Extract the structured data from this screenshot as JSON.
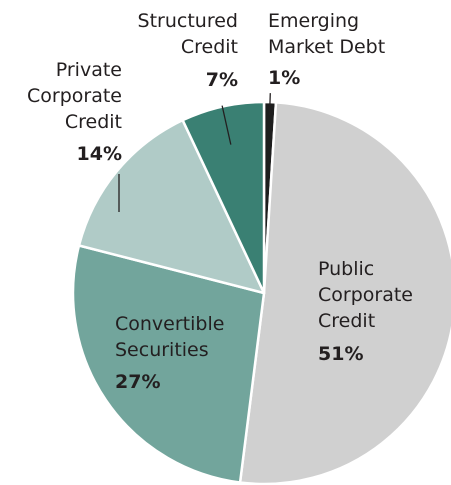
{
  "chart_data": {
    "type": "pie",
    "title": "",
    "slices": [
      {
        "name": "Public Corporate Credit",
        "label_lines": [
          "Public",
          "Corporate",
          "Credit"
        ],
        "percent_label": "51%",
        "value": 51,
        "color": "#d0d0d0"
      },
      {
        "name": "Convertible Securities",
        "label_lines": [
          "Convertible",
          "Securities"
        ],
        "percent_label": "27%",
        "value": 27,
        "color": "#72a59c"
      },
      {
        "name": "Private Corporate Credit",
        "label_lines": [
          "Private",
          "Corporate",
          "Credit"
        ],
        "percent_label": "14%",
        "value": 14,
        "color": "#b0cbc7"
      },
      {
        "name": "Structured Credit",
        "label_lines": [
          "Structured",
          "Credit"
        ],
        "percent_label": "7%",
        "value": 7,
        "color": "#3a8073"
      },
      {
        "name": "Emerging Market Debt",
        "label_lines": [
          "Emerging",
          "Market Debt"
        ],
        "percent_label": "1%",
        "value": 1,
        "color": "#1e1e1e"
      }
    ]
  }
}
